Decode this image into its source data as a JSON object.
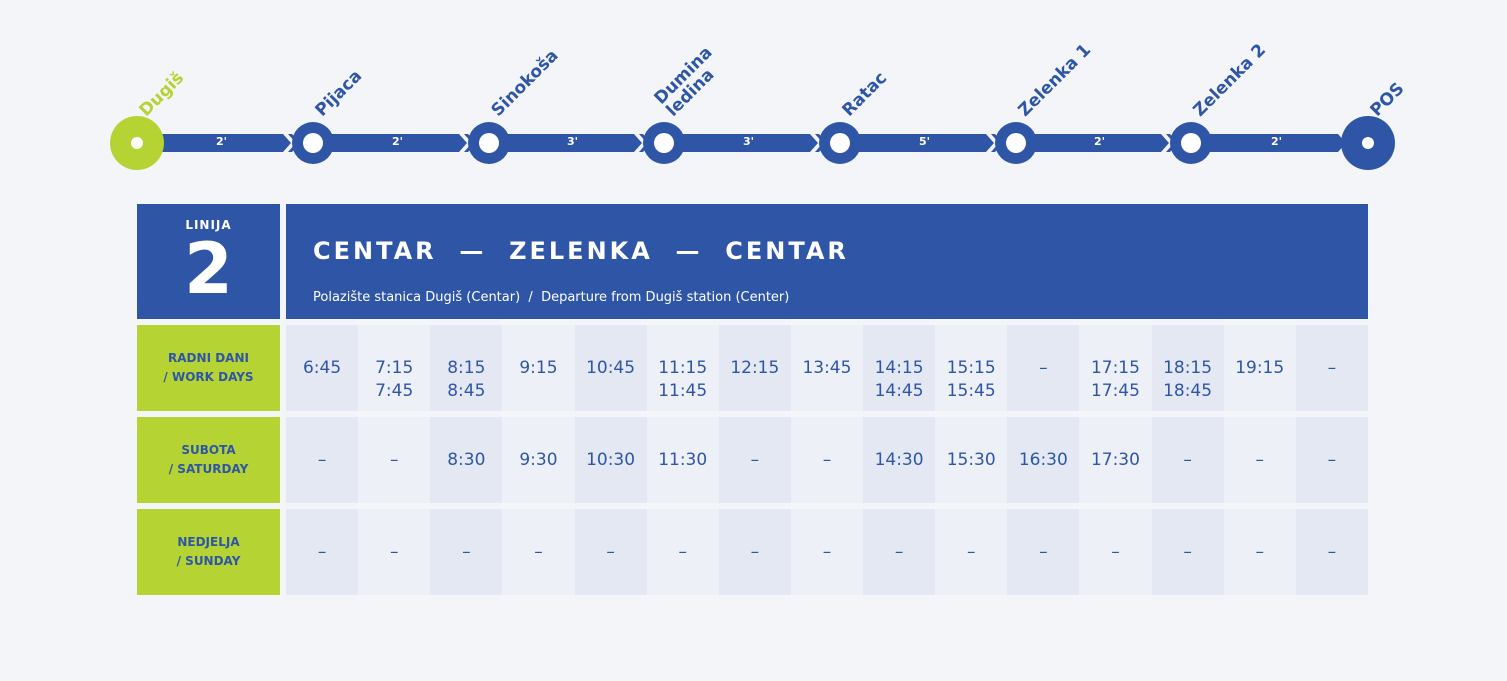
{
  "route_diagram": {
    "stations": [
      "Dugiš",
      "Pijaca",
      "Sinokoša",
      "Dumina\nledina",
      "Ratac",
      "Zelenka 1",
      "Zelenka 2",
      "POS"
    ],
    "travel_minutes": [
      "2'",
      "2'",
      "3'",
      "3'",
      "5'",
      "2'",
      "2'"
    ],
    "colors": {
      "line": "#2f56a6",
      "origin": "#b6d334",
      "dot": "#ffffff"
    }
  },
  "header": {
    "line_label": "LINIJA",
    "line_number": "2",
    "route_title": "CENTAR  —  ZELENKA  —  CENTAR",
    "departure_note": "Polazište stanica Dugiš (Centar)  /  Departure from Dugiš station (Center)"
  },
  "schedule": [
    {
      "day": "RADNI DANI\n/ WORK DAYS",
      "times": [
        "6:45",
        "7:15\n7:45",
        "8:15\n8:45",
        "9:15",
        "10:45",
        "11:15\n11:45",
        "12:15",
        "13:45",
        "14:15\n14:45",
        "15:15\n15:45",
        "–",
        "17:15\n17:45",
        "18:15\n18:45",
        "19:15",
        "–"
      ]
    },
    {
      "day": "SUBOTA\n/ SATURDAY",
      "times": [
        "–",
        "–",
        "8:30",
        "9:30",
        "10:30",
        "11:30",
        "–",
        "–",
        "14:30",
        "15:30",
        "16:30",
        "17:30",
        "–",
        "–",
        "–"
      ]
    },
    {
      "day": "NEDJELJA\n/ SUNDAY",
      "times": [
        "–",
        "–",
        "–",
        "–",
        "–",
        "–",
        "–",
        "–",
        "–",
        "–",
        "–",
        "–",
        "–",
        "–",
        "–"
      ]
    }
  ]
}
